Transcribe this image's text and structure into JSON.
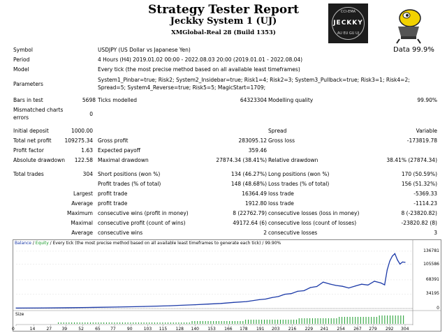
{
  "header": {
    "title": "Strategy Tester Report",
    "subtitle": "Jeckky System 1 (UJ)",
    "account": "XMGlobal-Real 28 (Build 1353)",
    "logo_top": "CCI-EMA",
    "logo_mid": "JECKKY",
    "logo_bottom": "AU EU GU UJ",
    "quality_label": "Data 99.9%"
  },
  "info": {
    "symbol_label": "Symbol",
    "symbol": "USDJPY (US Dollar vs Japanese Yen)",
    "period_label": "Period",
    "period": "4 Hours (H4) 2019.01.02 00:00 - 2022.08.03 20:00 (2019.01.01 - 2022.08.04)",
    "model_label": "Model",
    "model": "Every tick (the most precise method based on all available least timeframes)",
    "parameters_label": "Parameters",
    "parameters": "System1_Pinbar=true; Risk2; System2_Insidebar=true; Risk1=4; Risk2=3; System3_Pullback=true; Risk3=1; Risk4=2; Spread=5; System4_Reverse=true; Risk5=5; MagicStart=1709;",
    "bars_label": "Bars in test",
    "bars": "5698",
    "ticks_label": "Ticks modelled",
    "ticks": "64323304",
    "mq_label": "Modelling quality",
    "mq": "99.90%",
    "mismatch_label": "Mismatched charts errors",
    "mismatch": "0",
    "deposit_label": "Initial deposit",
    "deposit": "1000.00",
    "spread_label": "Spread",
    "spread": "Variable",
    "netprofit_label": "Total net profit",
    "netprofit": "109275.34",
    "grossprofit_label": "Gross profit",
    "grossprofit": "283095.12",
    "grossloss_label": "Gross loss",
    "grossloss": "-173819.78",
    "pf_label": "Profit factor",
    "pf": "1.63",
    "ep_label": "Expected payoff",
    "ep": "359.46",
    "absdd_label": "Absolute drawdown",
    "absdd": "122.58",
    "maxdd_label": "Maximal drawdown",
    "maxdd": "27874.34 (38.41%)",
    "reldd_label": "Relative drawdown",
    "reldd": "38.41% (27874.34)",
    "trades_label": "Total trades",
    "trades": "304",
    "short_label": "Short positions (won %)",
    "short": "134 (46.27%)",
    "long_label": "Long positions (won %)",
    "long": "170 (50.59%)",
    "pt_label": "Profit trades (% of total)",
    "pt": "148 (48.68%)",
    "lt_label": "Loss trades (% of total)",
    "lt": "156 (51.32%)",
    "largest_pre": "Largest",
    "largest_pt_label": "profit trade",
    "largest_pt": "16364.49",
    "largest_lt_label": "loss trade",
    "largest_lt": "-5369.33",
    "average_pre": "Average",
    "avg_pt_label": "profit trade",
    "avg_pt": "1912.80",
    "avg_lt_label": "loss trade",
    "avg_lt": "-1114.23",
    "maximum_pre": "Maximum",
    "max_cw_label": "consecutive wins (profit in money)",
    "max_cw": "8 (22762.79)",
    "max_cl_label": "consecutive losses (loss in money)",
    "max_cl": "8 (-23820.82)",
    "maximal_pre": "Maximal",
    "mxl_cp_label": "consecutive profit (count of wins)",
    "mxl_cp": "49172.64 (6)",
    "mxl_cl_label": "consecutive loss (count of losses)",
    "mxl_cl": "-23820.82 (8)",
    "average2_pre": "Average",
    "avg_cw_label": "consecutive wins",
    "avg_cw": "2",
    "avg_cl_label": "consecutive losses",
    "avg_cl": "3"
  },
  "chart_data": {
    "type": "line",
    "legend_balance": "Balance",
    "legend_sep": " / ",
    "legend_equity": "Equity",
    "legend_rest": " / Every tick (the most precise method based on all available least timeframes to generate each tick) / 99.90%",
    "size_label": "Size",
    "y_ticks": [
      "136781",
      "105586",
      "68391",
      "34195",
      "0"
    ],
    "y_tick_values": [
      136781,
      105586,
      68391,
      34195,
      0
    ],
    "x_ticks": [
      "0",
      "14",
      "27",
      "39",
      "52",
      "65",
      "77",
      "90",
      "103",
      "115",
      "128",
      "140",
      "153",
      "166",
      "178",
      "191",
      "203",
      "216",
      "229",
      "241",
      "254",
      "267",
      "279",
      "292",
      "304"
    ],
    "ylim": [
      0,
      150000
    ],
    "xlim": [
      0,
      310
    ],
    "series": [
      {
        "name": "Balance",
        "color": "#1c3aa8",
        "x": [
          0,
          20,
          40,
          60,
          80,
          100,
          120,
          140,
          150,
          160,
          170,
          180,
          190,
          195,
          200,
          205,
          210,
          215,
          220,
          225,
          230,
          235,
          240,
          245,
          250,
          255,
          260,
          265,
          270,
          275,
          280,
          285,
          288,
          290,
          292,
          294,
          296,
          298,
          300,
          302,
          304
        ],
        "y": [
          1000,
          1200,
          1800,
          2600,
          3500,
          4800,
          6500,
          9000,
          10500,
          12000,
          14500,
          16500,
          21000,
          22500,
          26000,
          28500,
          34000,
          35500,
          41000,
          42500,
          50000,
          52500,
          63000,
          58500,
          55000,
          53000,
          49000,
          53500,
          58000,
          56000,
          65000,
          61000,
          56500,
          92000,
          113000,
          125000,
          131000,
          116000,
          106000,
          111000,
          110275
        ]
      }
    ],
    "size_bars_note": "trade lots",
    "size_bars": [
      1,
      1,
      1,
      1,
      1,
      1,
      1,
      1,
      1,
      1,
      1,
      1,
      1,
      1,
      1,
      1,
      1,
      1,
      1,
      1,
      1,
      1,
      1,
      1,
      1,
      1,
      1,
      1,
      1,
      1,
      1,
      1,
      1,
      1,
      1,
      1,
      1,
      1,
      1,
      1,
      1,
      1,
      1,
      1,
      1,
      1,
      1,
      1,
      1,
      1,
      2,
      2,
      2,
      2,
      2,
      2,
      2,
      2,
      2,
      2,
      2,
      2,
      2,
      2,
      2,
      2,
      2,
      2,
      2,
      2,
      3,
      3,
      3,
      3,
      3,
      3,
      3,
      3,
      3,
      3,
      3,
      3,
      3,
      3,
      3,
      3,
      3,
      3,
      3,
      3,
      4,
      4,
      4,
      4,
      4,
      4,
      4,
      4,
      4,
      4,
      4,
      4,
      4,
      4,
      4,
      5,
      5,
      5,
      5,
      5,
      5,
      5,
      5,
      5,
      5,
      5,
      5,
      5,
      5,
      5,
      6,
      6,
      6,
      6,
      6,
      6,
      6,
      6,
      6,
      6
    ]
  }
}
